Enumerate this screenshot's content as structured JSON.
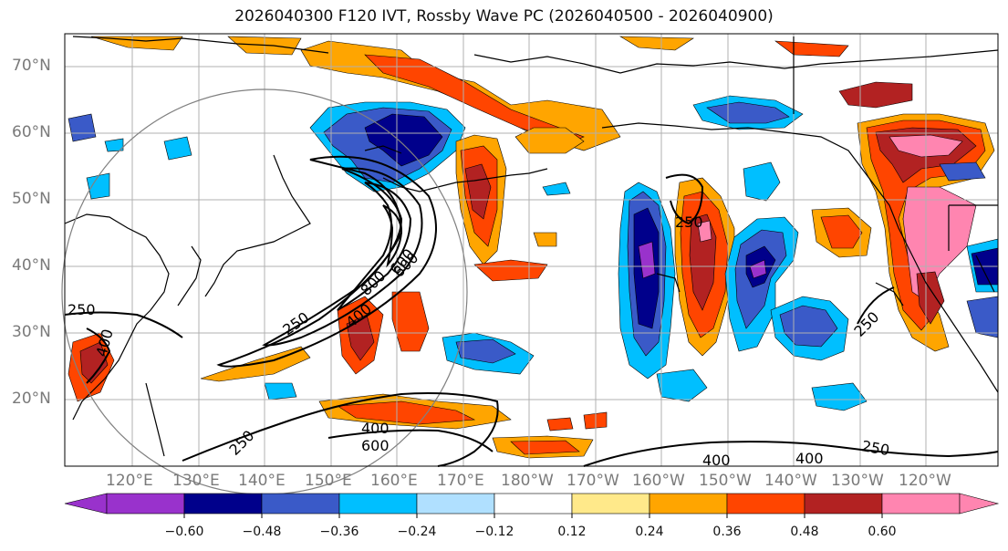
{
  "title": "2026040300 F120 IVT, Rossby Wave PC (2026040500 - 2026040900)",
  "map": {
    "lat_labels": [
      "70°N",
      "60°N",
      "50°N",
      "40°N",
      "30°N",
      "20°N"
    ],
    "lon_labels": [
      "120°E",
      "130°E",
      "140°E",
      "150°E",
      "160°E",
      "170°E",
      "180°W",
      "170°W",
      "160°W",
      "150°W",
      "140°W",
      "130°W",
      "120°W"
    ],
    "contour_labels": [
      "250",
      "400",
      "600",
      "800",
      "600",
      "400",
      "250",
      "250",
      "400",
      "600",
      "250",
      "250",
      "400",
      "400",
      "250"
    ],
    "colors": {
      "contour": "#000000",
      "coast": "#000000",
      "grid": "#b0b0b0",
      "circle": "#808080"
    }
  },
  "colorbar": {
    "colors": [
      "#9932cc",
      "#00008b",
      "#3a5ac8",
      "#00bfff",
      "#b0e0ff",
      "#ffffff",
      "#ffe98a",
      "#ffa500",
      "#ff4500",
      "#b22222",
      "#ff85b0"
    ],
    "tick_labels": [
      "−0.60",
      "−0.48",
      "−0.36",
      "−0.24",
      "−0.12",
      "0.12",
      "0.24",
      "0.36",
      "0.48",
      "0.60"
    ]
  }
}
